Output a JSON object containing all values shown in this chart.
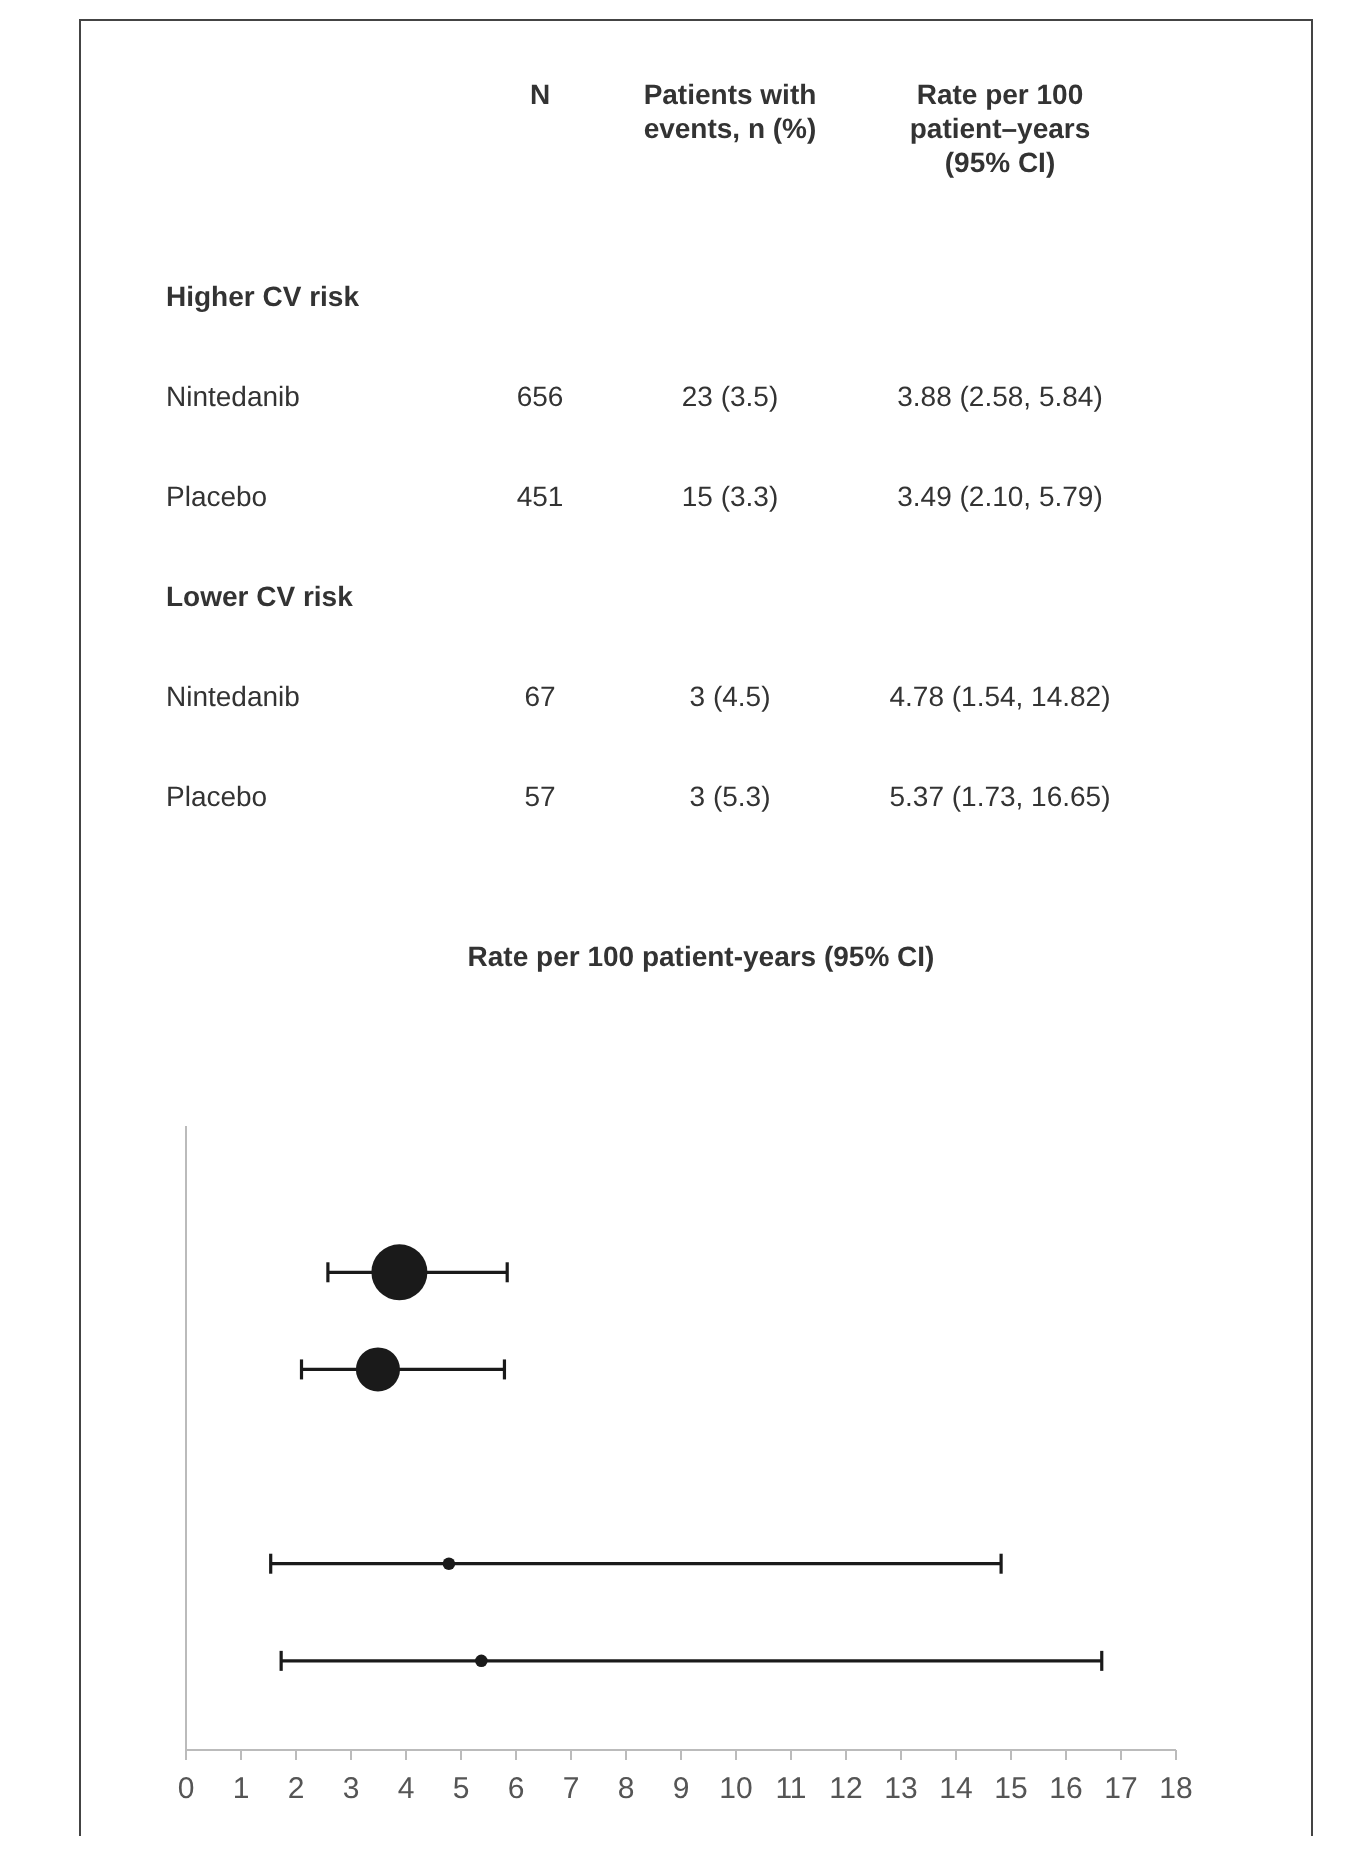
{
  "chart_data": [
    {
      "type": "other",
      "categories": [
        "N",
        "Patients with events, n (%)",
        "Rate per 100 patient–years (95% CI)"
      ],
      "y_categories": [
        "Higher CV risk",
        "Nintedanib",
        "Placebo",
        "Lower CV risk",
        "Nintedanib",
        "Placebo"
      ],
      "cell_labels": [
        [
          null,
          null,
          null
        ],
        [
          "656",
          "23 (3.5)",
          "3.88 (2.58, 5.84)"
        ],
        [
          "451",
          "15 (3.3)",
          "3.49 (2.10, 5.79)"
        ],
        [
          null,
          null,
          null
        ],
        [
          "67",
          "3 (4.5)",
          "4.78 (1.54, 14.82)"
        ],
        [
          "57",
          "3 (5.3)",
          "5.37 (1.73, 16.65)"
        ]
      ]
    },
    {
      "type": "bubble",
      "title": "Rate per 100 patient-years (95% CI)",
      "orientation": "horizontal",
      "categories": [
        null,
        null,
        null,
        null,
        null,
        null
      ],
      "values": [
        null,
        3.88,
        3.49,
        null,
        4.78,
        5.37
      ],
      "errors": [
        null,
        [
          2.58,
          5.84
        ],
        [
          2.1,
          5.79
        ],
        null,
        [
          1.54,
          14.82
        ],
        [
          1.73,
          16.65
        ]
      ],
      "sizes": [
        null,
        1,
        0.62,
        null,
        0.05,
        0.05
      ],
      "color": "#1a1a1a",
      "marker": "circle",
      "xlim": [
        0,
        18
      ],
      "xticks": [
        0,
        1,
        2,
        3,
        4,
        5,
        6,
        7,
        8,
        9,
        10,
        11,
        12,
        13,
        14,
        15,
        16,
        17,
        18
      ],
      "tick_labels": "x"
    }
  ]
}
